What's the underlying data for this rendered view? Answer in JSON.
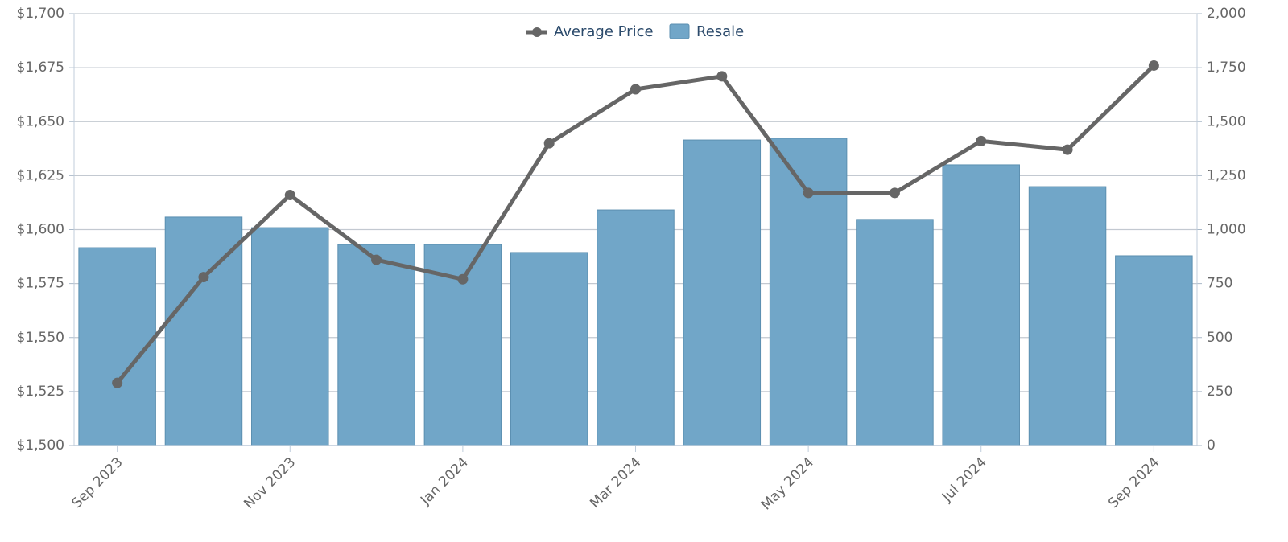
{
  "chart_data": {
    "type": "combo",
    "categories": [
      "Sep 2023",
      null,
      "Nov 2023",
      null,
      "Jan 2024",
      null,
      "Mar 2024",
      null,
      "May 2024",
      null,
      "Jul 2024",
      null,
      "Sep 2024"
    ],
    "series": [
      {
        "name": "Average Price",
        "type": "line",
        "color": "#666666",
        "axis": "y",
        "values": [
          1529,
          1578,
          1616,
          1586,
          1577,
          1640,
          1665,
          1671,
          1617,
          1617,
          1641,
          1637,
          1676
        ]
      },
      {
        "name": "Resale",
        "type": "bar",
        "color": "#71a6c8",
        "axis": "y2",
        "values": [
          916,
          1058,
          1009,
          931,
          931,
          894,
          1091,
          1415,
          1423,
          1047,
          1300,
          1199,
          879
        ]
      }
    ],
    "ylim": [
      1500,
      1700
    ],
    "yticks": [
      {
        "value": 1500,
        "label": "$1,500"
      },
      {
        "value": 1525,
        "label": "$1,525"
      },
      {
        "value": 1550,
        "label": "$1,550"
      },
      {
        "value": 1575,
        "label": "$1,575"
      },
      {
        "value": 1600,
        "label": "$1,600"
      },
      {
        "value": 1625,
        "label": "$1,625"
      },
      {
        "value": 1650,
        "label": "$1,650"
      },
      {
        "value": 1675,
        "label": "$1,675"
      },
      {
        "value": 1700,
        "label": "$1,700"
      }
    ],
    "y2lim": [
      0,
      2000
    ],
    "y2ticks": [
      0,
      250,
      500,
      750,
      {
        "value": 1000,
        "label": "1,000"
      },
      {
        "value": 1250,
        "label": "1,250"
      },
      {
        "value": 1500,
        "label": "1,500"
      },
      {
        "value": 1750,
        "label": "1,750"
      },
      {
        "value": 2000,
        "label": "2,000"
      }
    ],
    "grid": true,
    "legend": "top"
  }
}
